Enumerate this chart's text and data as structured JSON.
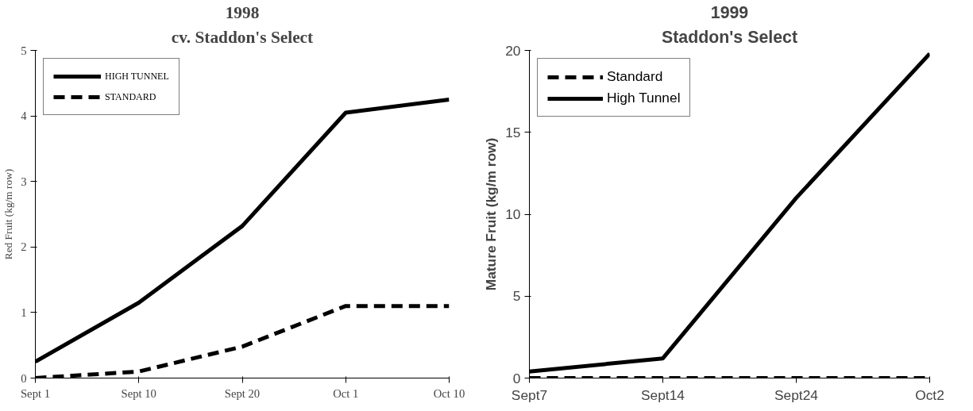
{
  "chart_data": [
    {
      "type": "line",
      "title": "1998",
      "subtitle": "cv. Staddon's Select",
      "ylabel": "Red Fruit (kg/m row)",
      "categories": [
        "Sept 1",
        "Sept 10",
        "Sept 20",
        "Oct 1",
        "Oct 10"
      ],
      "ylim": [
        0,
        5
      ],
      "yticks": [
        0,
        1,
        2,
        3,
        4,
        5
      ],
      "legend": "top left",
      "grid": false,
      "marker": "none",
      "series": [
        {
          "name": "HIGH TUNNEL",
          "color": "#000000",
          "line_style": "solid",
          "values": [
            0.25,
            1.15,
            2.32,
            4.05,
            4.25
          ]
        },
        {
          "name": "STANDARD",
          "color": "#000000",
          "line_style": "dashed",
          "values": [
            0.0,
            0.1,
            0.48,
            1.1,
            1.1
          ]
        }
      ]
    },
    {
      "type": "line",
      "title": "1999",
      "subtitle": "Staddon's Select",
      "ylabel": "Mature Fruit (kg/m row)",
      "categories": [
        "Sept7",
        "Sept14",
        "Sept24",
        "Oct2"
      ],
      "ylim": [
        0,
        20
      ],
      "yticks": [
        0,
        5,
        10,
        15,
        20
      ],
      "legend": "top left",
      "grid": false,
      "marker": "none",
      "series": [
        {
          "name": "Standard",
          "color": "#000000",
          "line_style": "dashed",
          "values": [
            0,
            0,
            0,
            0
          ]
        },
        {
          "name": "High Tunnel",
          "color": "#000000",
          "line_style": "solid",
          "values": [
            0.4,
            1.2,
            11.0,
            19.8
          ]
        }
      ]
    }
  ]
}
